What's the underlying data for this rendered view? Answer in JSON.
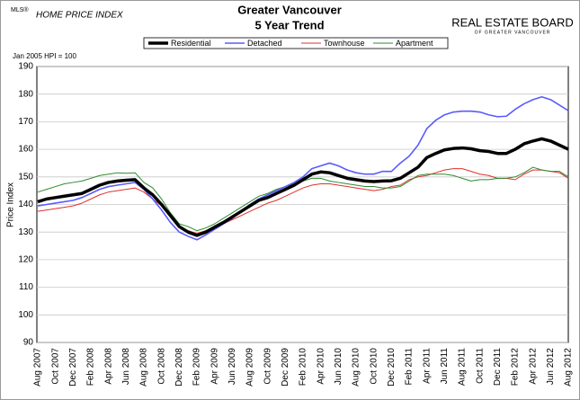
{
  "logo_left": {
    "top": "MLS®",
    "main": "HOME PRICE INDEX"
  },
  "logo_right": {
    "main": "REAL ESTATE BOARD",
    "sub": "OF GREATER VANCOUVER"
  },
  "chart_data": {
    "type": "line",
    "title": "Greater Vancouver",
    "subtitle": "5 Year Trend",
    "note": "Jan 2005 HPI = 100",
    "y_label": "Price Index",
    "ylim": [
      90,
      190
    ],
    "yticks": [
      90,
      100,
      110,
      120,
      130,
      140,
      150,
      160,
      170,
      180,
      190
    ],
    "grid": true,
    "legend": "top",
    "categories": [
      "Aug 2007",
      null,
      "Oct 2007",
      null,
      "Dec 2007",
      null,
      "Feb 2008",
      null,
      "Apr 2008",
      null,
      "Jun 2008",
      null,
      "Aug 2008",
      null,
      "Oct 2008",
      null,
      "Dec 2008",
      null,
      "Feb 2009",
      null,
      "Apr 2009",
      null,
      "Jun 2009",
      null,
      "Aug 2009",
      null,
      "Oct 2009",
      null,
      "Dec 2009",
      null,
      "Feb 2010",
      null,
      "Apr 2010",
      null,
      "Jun 2010",
      null,
      "Aug 2010",
      null,
      "Oct 2010",
      null,
      "Dec 2010",
      null,
      "Feb 2011",
      null,
      "Apr 2011",
      null,
      "Jun 2011",
      null,
      "Aug 2011",
      null,
      "Oct 2011",
      null,
      "Dec 2011",
      null,
      "Feb 2012",
      null,
      "Apr 2012",
      null,
      "Jun 2012",
      null,
      "Aug 2012"
    ],
    "series": [
      {
        "name": "Residential",
        "color": "#000000",
        "width": 3.5,
        "values": [
          141,
          142,
          142.5,
          143,
          143.5,
          144,
          145.5,
          147,
          148,
          148.5,
          148.8,
          149,
          146,
          143.5,
          140,
          136,
          132,
          130,
          128.8,
          130,
          131.8,
          133.5,
          135.5,
          137.5,
          139.5,
          141.5,
          142.5,
          144,
          145.5,
          147,
          149,
          151,
          151.8,
          151.5,
          150.5,
          149.5,
          149,
          148.5,
          148.3,
          148.5,
          148.6,
          149.5,
          151.5,
          153.5,
          157,
          158.5,
          159.8,
          160.3,
          160.5,
          160.2,
          159.5,
          159.2,
          158.5,
          158.5,
          160,
          162,
          163,
          163.8,
          163,
          161.5,
          160
        ]
      },
      {
        "name": "Detached",
        "color": "#5a5aff",
        "width": 1.6,
        "values": [
          139.5,
          140,
          140.5,
          141,
          141.5,
          142.5,
          144,
          145.5,
          146.5,
          147,
          147.5,
          148,
          145.5,
          142,
          138,
          133.5,
          130,
          128.5,
          127.2,
          129,
          131,
          133,
          135,
          137.5,
          140,
          142,
          143.5,
          145,
          146.5,
          148,
          150,
          153,
          154,
          155,
          154,
          152.5,
          151.5,
          151,
          151,
          152,
          152,
          155,
          157.5,
          161.5,
          167.5,
          170.5,
          172.5,
          173.5,
          173.8,
          173.8,
          173.5,
          172.5,
          171.8,
          172,
          174.5,
          176.5,
          178,
          179,
          178,
          176,
          174
        ]
      },
      {
        "name": "Townhouse",
        "color": "#e0302a",
        "width": 1,
        "values": [
          137.5,
          138,
          138.5,
          139,
          139.5,
          140.5,
          142,
          143.5,
          144.5,
          145,
          145.5,
          146,
          144.5,
          142,
          139.5,
          135.5,
          132,
          130.5,
          129.5,
          130.5,
          131.5,
          133,
          134.5,
          136,
          137.5,
          139,
          140.5,
          141.5,
          143,
          144.5,
          146,
          147,
          147.5,
          147.5,
          147,
          146.5,
          146,
          145.5,
          145,
          145.5,
          146.5,
          147,
          149,
          150,
          150.5,
          151.5,
          152.5,
          153,
          153,
          152,
          151,
          150.5,
          149.5,
          149.5,
          149,
          151,
          152.5,
          152.5,
          152,
          151.5,
          149.5
        ]
      },
      {
        "name": "Apartment",
        "color": "#2e8b2e",
        "width": 1,
        "values": [
          144.5,
          145.5,
          146.5,
          147.5,
          148,
          148.5,
          149.5,
          150.5,
          151,
          151.5,
          151.3,
          151.5,
          148,
          146,
          142,
          137,
          133,
          132,
          130.5,
          131.5,
          133,
          135,
          137,
          139,
          141,
          143,
          144,
          145.5,
          146.5,
          147.5,
          148.5,
          149.5,
          149.5,
          148.5,
          148,
          147.5,
          147,
          146.5,
          146.5,
          146,
          146,
          146.5,
          148.5,
          150.5,
          151,
          151,
          151,
          150.5,
          149.5,
          148.5,
          149,
          149,
          149.5,
          149.5,
          150,
          151.5,
          153.5,
          152.5,
          152,
          152,
          150
        ]
      }
    ]
  }
}
